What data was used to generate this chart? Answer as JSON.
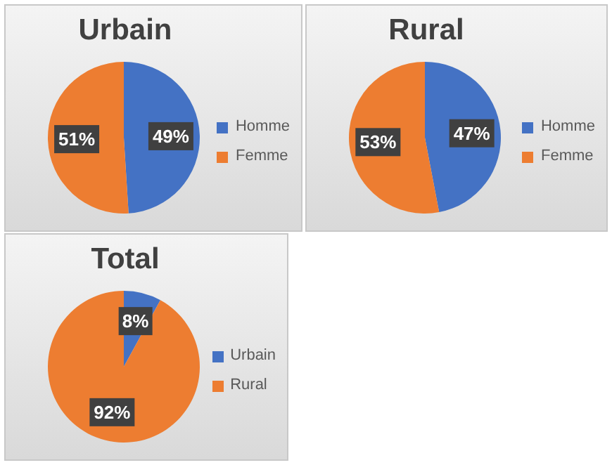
{
  "chart_data": [
    {
      "type": "pie",
      "title": "Urbain",
      "categories": [
        "Homme",
        "Femme"
      ],
      "values": [
        49,
        51
      ],
      "colors": [
        "#4472c4",
        "#ed7d31"
      ],
      "value_labels": [
        "49%",
        "51%"
      ],
      "legend": "right"
    },
    {
      "type": "pie",
      "title": "Rural",
      "categories": [
        "Homme",
        "Femme"
      ],
      "values": [
        47,
        53
      ],
      "colors": [
        "#4472c4",
        "#ed7d31"
      ],
      "value_labels": [
        "47%",
        "53%"
      ],
      "legend": "right"
    },
    {
      "type": "pie",
      "title": "Total",
      "categories": [
        "Urbain",
        "Rural"
      ],
      "values": [
        8,
        92
      ],
      "colors": [
        "#4472c4",
        "#ed7d31"
      ],
      "value_labels": [
        "8%",
        "92%"
      ],
      "legend": "right"
    }
  ]
}
